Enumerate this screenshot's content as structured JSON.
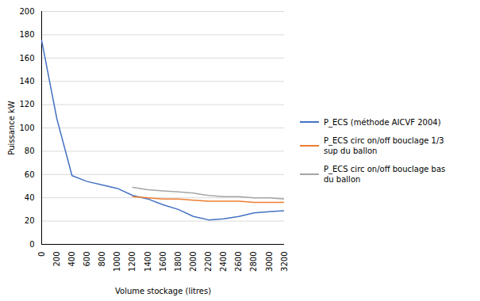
{
  "chart_data": {
    "type": "line",
    "xlabel": "Volume stockage (litres)",
    "ylabel": "Puissance kW",
    "x": [
      0,
      200,
      400,
      600,
      800,
      1000,
      1200,
      1400,
      1600,
      1800,
      2000,
      2200,
      2400,
      2600,
      2800,
      3000,
      3200
    ],
    "series": [
      {
        "name": "P_ECS (méthode AICVF 2004)",
        "color": "#4472C4",
        "values": [
          175,
          108,
          59,
          54,
          51,
          48,
          42,
          39,
          34,
          30,
          24,
          21,
          22,
          24,
          27,
          28,
          29
        ]
      },
      {
        "name": "P_ECS circ on/off bouclage 1/3\nsup du ballon",
        "color": "#ED7D31",
        "values": [
          null,
          null,
          null,
          null,
          null,
          null,
          41,
          40,
          39,
          39,
          38,
          37,
          37,
          37,
          36,
          36,
          36
        ]
      },
      {
        "name": "P_ECS circ on/off bouclage bas\ndu ballon",
        "color": "#A5A5A5",
        "values": [
          null,
          null,
          null,
          null,
          null,
          null,
          49,
          47,
          46,
          45,
          44,
          42,
          41,
          41,
          40,
          40,
          39
        ]
      }
    ],
    "xlim": [
      0,
      3200
    ],
    "ylim": [
      0,
      200
    ],
    "xticks": [
      0,
      200,
      400,
      600,
      800,
      1000,
      1200,
      1400,
      1600,
      1800,
      2000,
      2200,
      2400,
      2600,
      2800,
      3000,
      3200
    ],
    "yticks": [
      0,
      20,
      40,
      60,
      80,
      100,
      120,
      140,
      160,
      180,
      200
    ],
    "grid": true,
    "legend": "right"
  }
}
